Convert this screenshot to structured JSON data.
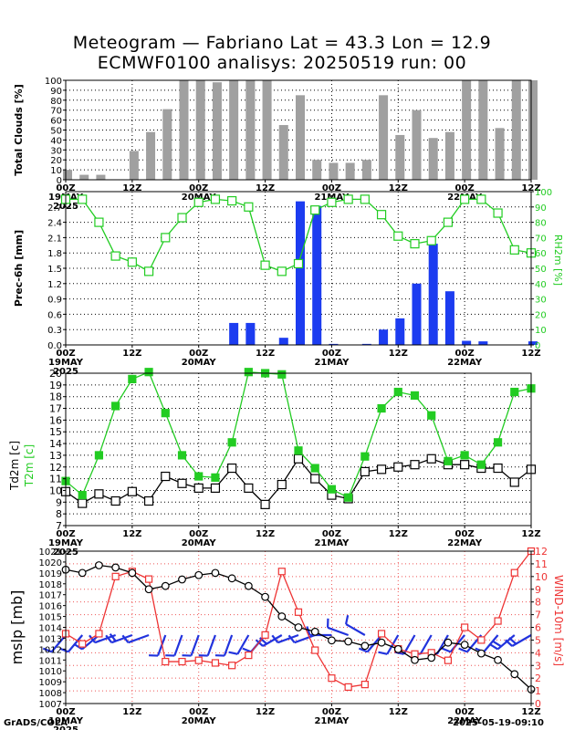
{
  "title": {
    "line1": "Meteogram — Fabriano Lat = 43.3 Lon = 12.9",
    "line2": "ECMWF0100 analisys: 20250519 run: 00"
  },
  "time_axis": {
    "ticks": [
      {
        "hour": 0,
        "label": "00Z",
        "sub": "19MAY",
        "sub2": "2025"
      },
      {
        "hour": 12,
        "label": "12Z",
        "sub": ""
      },
      {
        "hour": 24,
        "label": "00Z",
        "sub": "20MAY"
      },
      {
        "hour": 36,
        "label": "12Z",
        "sub": ""
      },
      {
        "hour": 48,
        "label": "00Z",
        "sub": "21MAY"
      },
      {
        "hour": 60,
        "label": "12Z",
        "sub": ""
      },
      {
        "hour": 72,
        "label": "00Z",
        "sub": "22MAY"
      },
      {
        "hour": 84,
        "label": "12Z",
        "sub": ""
      }
    ],
    "first_panel_ticks": [
      {
        "hour": 0,
        "label": "00Z",
        "sub": "19MAY",
        "sub2": "2025"
      },
      {
        "hour": 12,
        "label": "12Z",
        "sub": ""
      },
      {
        "hour": 24,
        "label": "00Z",
        "sub": "20MAY"
      },
      {
        "hour": 36,
        "label": "12Z",
        "sub": ""
      },
      {
        "hour": 48,
        "label": "00Z",
        "sub": "21MAY"
      },
      {
        "hour": 60,
        "label": "12Z",
        "sub": ""
      },
      {
        "hour": 72,
        "label": "00Z",
        "sub": "22MAY"
      },
      {
        "hour": 84,
        "label": "12Z",
        "sub": ""
      }
    ]
  },
  "chart_data": [
    {
      "type": "bar",
      "ylabel": "Total Clouds [%]",
      "ylim": [
        0,
        100
      ],
      "yticks": [
        0,
        10,
        20,
        30,
        40,
        50,
        60,
        70,
        80,
        90,
        100
      ],
      "grid": true,
      "color": "#a0a0a0",
      "hours": [
        0,
        3,
        6,
        9,
        12,
        15,
        18,
        21,
        24,
        27,
        30,
        33,
        36,
        39,
        42,
        45,
        48,
        51,
        54,
        57,
        60,
        63,
        66,
        69,
        72,
        75,
        78,
        81,
        84
      ],
      "values": [
        10,
        5,
        5,
        0,
        29,
        48,
        71,
        100,
        100,
        98,
        100,
        100,
        100,
        55,
        85,
        20,
        17,
        17,
        20,
        85,
        45,
        70,
        42,
        48,
        100,
        100,
        52,
        100,
        100
      ]
    },
    {
      "type": "bar+line",
      "ylabel": "Prec-6h [mm]",
      "ylabel_right": "RH2m [%]",
      "ylim": [
        0,
        3.0
      ],
      "yticks": [
        0,
        0.3,
        0.6,
        0.9,
        1.2,
        1.5,
        1.8,
        2.1,
        2.4,
        2.7
      ],
      "ylim_right": [
        0,
        100
      ],
      "yticks_right": [
        0,
        10,
        20,
        30,
        40,
        50,
        60,
        70,
        80,
        90,
        100
      ],
      "grid": true,
      "precip": {
        "color": "#1c3cf0",
        "hours": [
          0,
          3,
          6,
          9,
          12,
          15,
          18,
          21,
          24,
          27,
          30,
          33,
          36,
          39,
          42,
          45,
          48,
          51,
          54,
          57,
          60,
          63,
          66,
          69,
          72,
          75,
          78,
          81,
          84
        ],
        "values": [
          0,
          0,
          0,
          0,
          0,
          0,
          0,
          0,
          0,
          0,
          0.43,
          0.43,
          0,
          0.14,
          2.81,
          2.72,
          0.02,
          0,
          0.02,
          0.3,
          0.52,
          1.2,
          1.98,
          1.05,
          0.08,
          0.07,
          0,
          0,
          0.07
        ]
      },
      "rh": {
        "color": "#22cc22",
        "hours": [
          0,
          3,
          6,
          9,
          12,
          15,
          18,
          21,
          24,
          27,
          30,
          33,
          36,
          39,
          42,
          45,
          48,
          51,
          54,
          57,
          60,
          63,
          66,
          69,
          72,
          75,
          78,
          81,
          84
        ],
        "values": [
          95,
          95,
          80,
          58,
          54,
          48,
          70,
          83,
          93,
          95,
          94,
          90,
          52,
          48,
          53,
          88,
          93,
          95,
          95,
          85,
          71,
          66,
          68,
          80,
          95,
          95,
          86,
          62,
          60
        ]
      }
    },
    {
      "type": "line",
      "ylabel": "Td2m [c]",
      "ylabel2": "T2m [c]",
      "ylim": [
        7,
        20
      ],
      "yticks": [
        7,
        8,
        9,
        10,
        11,
        12,
        13,
        14,
        15,
        16,
        17,
        18,
        19,
        20
      ],
      "grid": true,
      "t2m": {
        "color": "#22cc22",
        "hours": [
          0,
          3,
          6,
          9,
          12,
          15,
          18,
          21,
          24,
          27,
          30,
          33,
          36,
          39,
          42,
          45,
          48,
          51,
          54,
          57,
          60,
          63,
          66,
          69,
          72,
          75,
          78,
          81,
          84
        ],
        "values": [
          10.8,
          9.6,
          13.0,
          17.2,
          19.5,
          20.1,
          16.6,
          13.0,
          11.2,
          11.1,
          14.1,
          20.1,
          20.0,
          19.9,
          13.4,
          11.9,
          10.1,
          9.4,
          12.9,
          17.0,
          18.4,
          18.1,
          16.4,
          12.5,
          13.0,
          12.2,
          14.1,
          18.4,
          18.7
        ]
      },
      "td2m": {
        "color": "#000000",
        "hours": [
          0,
          3,
          6,
          9,
          12,
          15,
          18,
          21,
          24,
          27,
          30,
          33,
          36,
          39,
          42,
          45,
          48,
          51,
          54,
          57,
          60,
          63,
          66,
          69,
          72,
          75,
          78,
          81,
          84
        ],
        "values": [
          9.9,
          8.9,
          9.7,
          9.1,
          9.9,
          9.1,
          11.2,
          10.6,
          10.2,
          10.2,
          11.9,
          10.2,
          8.8,
          10.5,
          12.7,
          11.0,
          9.6,
          9.3,
          11.6,
          11.8,
          12.0,
          12.2,
          12.7,
          12.2,
          12.2,
          11.9,
          11.9,
          10.7,
          11.8
        ]
      }
    },
    {
      "type": "line+barbs",
      "ylabel": "mslp [mb]",
      "ylabel_right": "WIND-10m [m/s]",
      "ylim": [
        1007,
        1021
      ],
      "yticks": [
        1007,
        1008,
        1009,
        1010,
        1011,
        1012,
        1013,
        1014,
        1015,
        1016,
        1017,
        1018,
        1019,
        1020,
        1021
      ],
      "ylim_right": [
        0,
        12
      ],
      "yticks_right": [
        0,
        1,
        2,
        3,
        4,
        5,
        6,
        7,
        8,
        9,
        10,
        11,
        12
      ],
      "grid": true,
      "mslp": {
        "color": "#000000",
        "hours": [
          0,
          3,
          6,
          9,
          12,
          15,
          18,
          21,
          24,
          27,
          30,
          33,
          36,
          39,
          42,
          45,
          48,
          51,
          54,
          57,
          60,
          63,
          66,
          69,
          72,
          75,
          78,
          81,
          84
        ],
        "values": [
          1019.3,
          1019.0,
          1019.7,
          1019.5,
          1019.0,
          1017.5,
          1017.8,
          1018.4,
          1018.8,
          1019.0,
          1018.5,
          1017.8,
          1016.8,
          1015.0,
          1014.0,
          1013.6,
          1012.8,
          1012.7,
          1012.3,
          1012.6,
          1012.0,
          1011.0,
          1011.2,
          1012.6,
          1012.4,
          1011.6,
          1011.0,
          1009.7,
          1008.3
        ]
      },
      "wind": {
        "color": "#ee3333",
        "hours": [
          0,
          3,
          6,
          9,
          12,
          15,
          18,
          21,
          24,
          27,
          30,
          33,
          36,
          39,
          42,
          45,
          48,
          51,
          54,
          57,
          60,
          63,
          66,
          69,
          72,
          75,
          78,
          81,
          84
        ],
        "values": [
          5.5,
          4.7,
          5.5,
          10.0,
          10.4,
          9.8,
          3.3,
          3.3,
          3.4,
          3.2,
          3.0,
          3.8,
          5.4,
          10.4,
          7.2,
          4.2,
          2.0,
          1.3,
          1.5,
          5.5,
          4.3,
          3.9,
          4.0,
          3.4,
          6.0,
          5.0,
          6.5,
          10.3,
          12.0
        ]
      },
      "barbs": {
        "color": "#2233dd",
        "hours": [
          0,
          3,
          6,
          9,
          12,
          15,
          18,
          21,
          24,
          27,
          30,
          33,
          36,
          39,
          42,
          45,
          48,
          51,
          54,
          57,
          60,
          63,
          66,
          69,
          72,
          75,
          78,
          81,
          84
        ],
        "speed_ms": [
          6,
          5,
          6,
          9,
          10,
          9,
          4,
          4,
          4,
          4,
          4,
          5,
          6,
          10,
          8,
          5,
          3,
          2,
          2,
          6,
          5,
          4,
          4,
          4,
          6,
          5,
          6,
          10,
          11
        ],
        "dir_deg": [
          220,
          220,
          230,
          250,
          250,
          250,
          200,
          200,
          200,
          200,
          200,
          210,
          220,
          240,
          250,
          250,
          270,
          290,
          300,
          220,
          210,
          210,
          210,
          210,
          220,
          220,
          220,
          230,
          240
        ]
      }
    }
  ],
  "footer": {
    "left": "GrADS/COLA",
    "right": "2025-05-19-09:10"
  }
}
